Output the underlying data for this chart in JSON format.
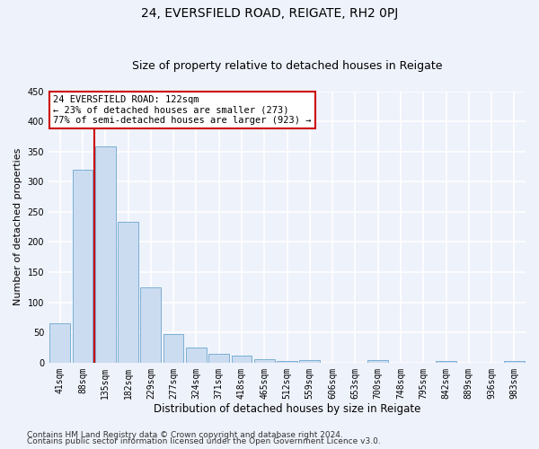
{
  "title1": "24, EVERSFIELD ROAD, REIGATE, RH2 0PJ",
  "title2": "Size of property relative to detached houses in Reigate",
  "xlabel": "Distribution of detached houses by size in Reigate",
  "ylabel": "Number of detached properties",
  "categories": [
    "41sqm",
    "88sqm",
    "135sqm",
    "182sqm",
    "229sqm",
    "277sqm",
    "324sqm",
    "371sqm",
    "418sqm",
    "465sqm",
    "512sqm",
    "559sqm",
    "606sqm",
    "653sqm",
    "700sqm",
    "748sqm",
    "795sqm",
    "842sqm",
    "889sqm",
    "936sqm",
    "983sqm"
  ],
  "values": [
    65,
    320,
    358,
    233,
    125,
    47,
    25,
    14,
    12,
    5,
    3,
    4,
    0,
    0,
    4,
    0,
    0,
    3,
    0,
    0,
    3
  ],
  "bar_color": "#ccdcf0",
  "bar_edge_color": "#7aafd4",
  "vline_x": 1.5,
  "vline_color": "#cc0000",
  "annotation_text": "24 EVERSFIELD ROAD: 122sqm\n← 23% of detached houses are smaller (273)\n77% of semi-detached houses are larger (923) →",
  "annotation_box_color": "#ffffff",
  "annotation_box_edge": "#cc0000",
  "ylim": [
    0,
    450
  ],
  "yticks": [
    0,
    50,
    100,
    150,
    200,
    250,
    300,
    350,
    400,
    450
  ],
  "footer1": "Contains HM Land Registry data © Crown copyright and database right 2024.",
  "footer2": "Contains public sector information licensed under the Open Government Licence v3.0.",
  "bg_color": "#eef2fb",
  "grid_color": "#ffffff",
  "title1_fontsize": 10,
  "title2_fontsize": 9,
  "tick_fontsize": 7,
  "ylabel_fontsize": 8,
  "xlabel_fontsize": 8.5,
  "footer_fontsize": 6.5,
  "ann_fontsize": 7.5
}
